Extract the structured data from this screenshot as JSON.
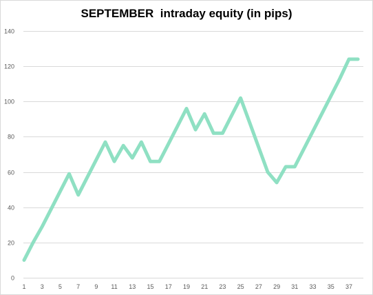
{
  "chart_data": {
    "type": "line",
    "title": "SEPTEMBER  intraday equity (in pips)",
    "xlabel": "",
    "ylabel": "",
    "x": [
      1,
      2,
      3,
      4,
      5,
      6,
      7,
      8,
      9,
      10,
      11,
      12,
      13,
      14,
      15,
      16,
      17,
      18,
      19,
      20,
      21,
      22,
      23,
      24,
      25,
      26,
      27,
      28,
      29,
      30,
      31,
      32,
      33,
      34,
      35,
      36,
      37,
      38
    ],
    "series": [
      {
        "values": [
          10,
          20,
          29,
          39,
          49,
          59,
          47,
          57,
          67,
          77,
          66,
          75,
          68,
          77,
          66,
          66,
          76,
          86,
          96,
          84,
          93,
          82,
          82,
          92,
          102,
          88,
          74,
          60,
          54,
          63,
          63,
          73,
          83,
          93,
          103,
          113,
          124,
          124
        ]
      }
    ],
    "x_ticks": [
      1,
      3,
      5,
      7,
      9,
      11,
      13,
      15,
      17,
      19,
      21,
      23,
      25,
      27,
      29,
      31,
      33,
      35,
      37
    ],
    "y_ticks": [
      0,
      20,
      40,
      60,
      80,
      100,
      120,
      140
    ],
    "ylim": [
      0,
      140
    ],
    "grid": true,
    "legend": "none",
    "line_color": "#8fe0c3",
    "grid_color": "#d9d9d9"
  }
}
